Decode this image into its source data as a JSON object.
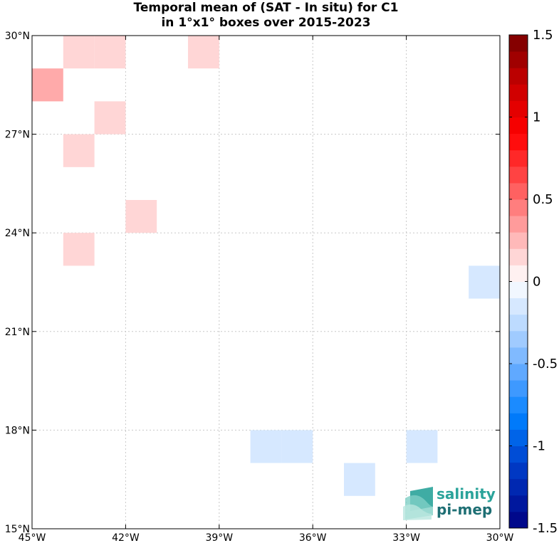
{
  "chart_data": {
    "type": "heatmap",
    "title_line1": "Temporal mean of (SAT - In situ) for C1",
    "title_line2": "in 1°x1° boxes over 2015-2023",
    "x_range": [
      -45,
      -30
    ],
    "y_range": [
      15,
      30
    ],
    "x_ticks": [
      -45,
      -42,
      -39,
      -36,
      -33,
      -30
    ],
    "x_tick_labels": [
      "45°W",
      "42°W",
      "39°W",
      "36°W",
      "33°W",
      "30°W"
    ],
    "y_ticks": [
      15,
      18,
      21,
      24,
      27,
      30
    ],
    "y_tick_labels": [
      "15°N",
      "18°N",
      "21°N",
      "24°N",
      "27°N",
      "30°N"
    ],
    "grid": true,
    "boxes": [
      {
        "lon": -45,
        "lat": 28,
        "value": 0.3
      },
      {
        "lon": -44,
        "lat": 29,
        "value": 0.15
      },
      {
        "lon": -43,
        "lat": 29,
        "value": 0.15
      },
      {
        "lon": -40,
        "lat": 29,
        "value": 0.15
      },
      {
        "lon": -43,
        "lat": 27,
        "value": 0.15
      },
      {
        "lon": -44,
        "lat": 26,
        "value": 0.15
      },
      {
        "lon": -42,
        "lat": 24,
        "value": 0.15
      },
      {
        "lon": -44,
        "lat": 23,
        "value": 0.15
      },
      {
        "lon": -31,
        "lat": 22,
        "value": -0.15
      },
      {
        "lon": -38,
        "lat": 17,
        "value": -0.15
      },
      {
        "lon": -37,
        "lat": 17,
        "value": -0.15
      },
      {
        "lon": -33,
        "lat": 17,
        "value": -0.15
      },
      {
        "lon": -35,
        "lat": 16,
        "value": -0.15
      }
    ],
    "colorbar": {
      "range": [
        -1.5,
        1.5
      ],
      "step": 0.1,
      "ticks": [
        1.5,
        1,
        0.5,
        0,
        -0.5,
        -1,
        -1.5
      ],
      "tick_labels": [
        "1.5",
        "1",
        "0.5",
        "0",
        "-0.5",
        "-1",
        "-1.5"
      ]
    }
  },
  "logo": {
    "line1": "salinity",
    "line2": "pi-mep",
    "color_top": "#2aa39a",
    "color_bottom": "#1e6f74"
  }
}
